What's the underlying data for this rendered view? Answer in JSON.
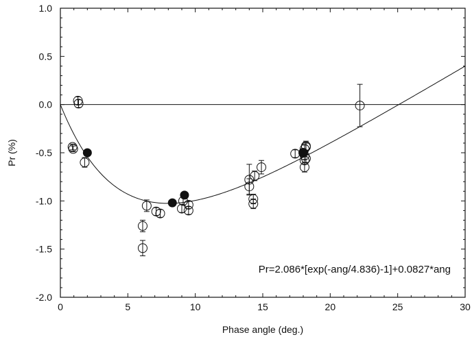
{
  "chart_data": {
    "type": "scatter",
    "title": "",
    "xlabel": "Phase angle (deg.)",
    "ylabel": "Pr (%)",
    "xlim": [
      0,
      30
    ],
    "ylim": [
      -2.0,
      1.0
    ],
    "x_ticks": [
      {
        "value": 0,
        "label": "0"
      },
      {
        "value": 5,
        "label": "5"
      },
      {
        "value": 10,
        "label": "10"
      },
      {
        "value": 15,
        "label": "15"
      },
      {
        "value": 20,
        "label": "20"
      },
      {
        "value": 25,
        "label": "25"
      },
      {
        "value": 30,
        "label": "30"
      }
    ],
    "y_ticks": [
      {
        "value": 1.0,
        "label": "1.0"
      },
      {
        "value": 0.5,
        "label": "0.5"
      },
      {
        "value": 0.0,
        "label": "0.0"
      },
      {
        "value": -0.5,
        "label": "-0.5"
      },
      {
        "value": -1.0,
        "label": "-1.0"
      },
      {
        "value": -1.5,
        "label": "-1.5"
      },
      {
        "value": -2.0,
        "label": "-2.0"
      }
    ],
    "grid": false,
    "zero_line": true,
    "annotation": "Pr=2.086*[exp(-ang/4.836)-1]+0.0827*ang",
    "fit": {
      "a": 2.086,
      "b": 4.836,
      "c": 0.0827
    },
    "series": [
      {
        "marker": "open-circle",
        "points": [
          {
            "x": 0.9,
            "y": -0.44,
            "err": 0.03
          },
          {
            "x": 0.95,
            "y": -0.46,
            "err": 0.03
          },
          {
            "x": 1.3,
            "y": 0.04,
            "err": 0.04
          },
          {
            "x": 1.35,
            "y": 0.01,
            "err": 0.04
          },
          {
            "x": 1.8,
            "y": -0.6,
            "err": 0.05
          },
          {
            "x": 6.1,
            "y": -1.26,
            "err": 0.06
          },
          {
            "x": 6.1,
            "y": -1.49,
            "err": 0.08
          },
          {
            "x": 6.4,
            "y": -1.05,
            "err": 0.06
          },
          {
            "x": 7.1,
            "y": -1.11,
            "err": 0.04
          },
          {
            "x": 7.4,
            "y": -1.13,
            "err": 0.04
          },
          {
            "x": 9.0,
            "y": -1.08,
            "err": 0.04
          },
          {
            "x": 9.1,
            "y": -1.0,
            "err": 0.04
          },
          {
            "x": 9.5,
            "y": -1.04,
            "err": 0.04
          },
          {
            "x": 9.5,
            "y": -1.1,
            "err": 0.04
          },
          {
            "x": 14.0,
            "y": -0.78,
            "err": 0.16
          },
          {
            "x": 14.0,
            "y": -0.85,
            "err": 0.08
          },
          {
            "x": 14.3,
            "y": -0.98,
            "err": 0.05
          },
          {
            "x": 14.3,
            "y": -1.03,
            "err": 0.05
          },
          {
            "x": 14.4,
            "y": -0.74,
            "err": 0.05
          },
          {
            "x": 14.9,
            "y": -0.65,
            "err": 0.07
          },
          {
            "x": 17.4,
            "y": -0.51,
            "err": 0.04
          },
          {
            "x": 18.0,
            "y": -0.5,
            "err": 0.04
          },
          {
            "x": 18.1,
            "y": -0.46,
            "err": 0.04
          },
          {
            "x": 18.1,
            "y": -0.53,
            "err": 0.04
          },
          {
            "x": 18.1,
            "y": -0.58,
            "err": 0.04
          },
          {
            "x": 18.1,
            "y": -0.65,
            "err": 0.05
          },
          {
            "x": 18.2,
            "y": -0.43,
            "err": 0.05
          },
          {
            "x": 18.2,
            "y": -0.44,
            "err": 0.04
          },
          {
            "x": 18.2,
            "y": -0.56,
            "err": 0.04
          },
          {
            "x": 22.2,
            "y": -0.01,
            "err": 0.22
          }
        ]
      },
      {
        "marker": "filled-circle",
        "points": [
          {
            "x": 2.0,
            "y": -0.5
          },
          {
            "x": 8.3,
            "y": -1.02
          },
          {
            "x": 9.2,
            "y": -0.94
          },
          {
            "x": 18.0,
            "y": -0.5
          }
        ]
      }
    ]
  }
}
